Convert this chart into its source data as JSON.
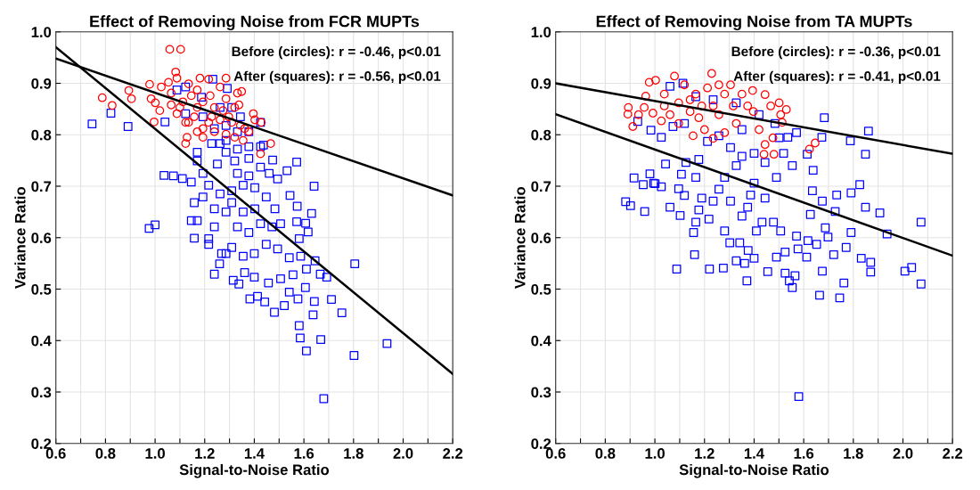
{
  "chart_data": [
    {
      "type": "scatter",
      "title": "Effect of Removing Noise from FCR MUPTs",
      "xlabel": "Signal-to-Noise Ratio",
      "ylabel": "Variance Ratio",
      "annotations": [
        "Before (circles): r = -0.46, p<0.01",
        "After (squares): r = -0.56, p<0.01"
      ],
      "xlim": [
        0.6,
        2.2
      ],
      "ylim": [
        0.2,
        1.0
      ],
      "xticks": [
        0.6,
        {
          "value": 0.7,
          "label": null
        },
        0.8,
        {
          "value": 0.9,
          "label": null
        },
        {
          "value": 1.0,
          "label": "1.0"
        },
        {
          "value": 1.1,
          "label": null
        },
        1.2,
        {
          "value": 1.3,
          "label": null
        },
        1.4,
        {
          "value": 1.5,
          "label": null
        },
        1.6,
        {
          "value": 1.7,
          "label": null
        },
        1.8,
        {
          "value": 1.9,
          "label": null
        },
        {
          "value": 2.0,
          "label": "2.0"
        },
        {
          "value": 2.1,
          "label": null
        },
        2.2
      ],
      "yticks": [
        0.2,
        0.3,
        0.4,
        0.5,
        0.6,
        0.7,
        0.8,
        0.9,
        {
          "value": 1.0,
          "label": "1.0"
        }
      ],
      "grid": true,
      "series": [
        {
          "marker": "square",
          "color": "#0000ff",
          "x": [
            0.746,
            0.822,
            0.891,
            1.04,
            1.036,
            1.074,
            1.11,
            0.976,
            1.0,
            1.158,
            1.146,
            1.17,
            1.216,
            1.239,
            1.26,
            1.268,
            1.315,
            1.338,
            1.361,
            1.382,
            1.413,
            1.442,
            1.481,
            1.521,
            1.541,
            1.576,
            1.581,
            1.585,
            1.61,
            1.668,
            1.68,
            1.637,
            1.642,
            1.711,
            1.753,
            1.802,
            1.805,
            1.935,
            1.692,
            1.666,
            1.61,
            1.645,
            1.606,
            1.556,
            1.506,
            1.457,
            1.4,
            1.641,
            1.631,
            1.617,
            1.571,
            1.532,
            1.474,
            1.544,
            1.573,
            1.571,
            1.607,
            1.581,
            1.587,
            1.541,
            1.494,
            1.448,
            1.4,
            1.355,
            1.309,
            1.286,
            1.216,
            1.239,
            1.17,
            1.146,
            1.158,
            1.193,
            1.239,
            1.286,
            1.332,
            1.378,
            1.425,
            1.471,
            1.506,
            1.483,
            1.448,
            1.402,
            1.355,
            1.309,
            1.262,
            1.216,
            1.193,
            1.251,
            1.286,
            1.321,
            1.378,
            1.425,
            1.46,
            1.494,
            1.378,
            1.332,
            1.355,
            1.402,
            1.309,
            1.262,
            1.228,
            1.286,
            1.332,
            1.378,
            1.425,
            1.437,
            1.17,
            1.332,
            1.378,
            1.425,
            1.286,
            1.239,
            1.193,
            1.123,
            1.123,
            1.088,
            1.233,
            1.291,
            1.309,
            1.344,
            1.262,
            1.187
          ],
          "values": [
            0.821,
            0.842,
            0.816,
            0.825,
            0.721,
            0.72,
            0.715,
            0.618,
            0.625,
            0.599,
            0.708,
            0.749,
            0.598,
            0.529,
            0.549,
            0.569,
            0.517,
            0.51,
            0.532,
            0.481,
            0.486,
            0.475,
            0.455,
            0.468,
            0.494,
            0.481,
            0.429,
            0.405,
            0.38,
            0.402,
            0.287,
            0.45,
            0.476,
            0.48,
            0.454,
            0.371,
            0.549,
            0.394,
            0.523,
            0.529,
            0.539,
            0.555,
            0.503,
            0.528,
            0.52,
            0.512,
            0.523,
            0.7,
            0.647,
            0.611,
            0.747,
            0.73,
            0.751,
            0.682,
            0.661,
            0.631,
            0.628,
            0.598,
            0.564,
            0.561,
            0.578,
            0.587,
            0.569,
            0.564,
            0.581,
            0.569,
            0.587,
            0.621,
            0.633,
            0.633,
            0.668,
            0.679,
            0.656,
            0.65,
            0.621,
            0.61,
            0.627,
            0.621,
            0.627,
            0.656,
            0.679,
            0.697,
            0.702,
            0.691,
            0.685,
            0.702,
            0.725,
            0.743,
            0.766,
            0.749,
            0.754,
            0.737,
            0.725,
            0.714,
            0.72,
            0.725,
            0.65,
            0.656,
            0.668,
            0.783,
            0.783,
            0.789,
            0.772,
            0.777,
            0.777,
            0.78,
            0.766,
            0.806,
            0.806,
            0.824,
            0.818,
            0.812,
            0.835,
            0.841,
            0.893,
            0.887,
            0.908,
            0.89,
            0.853,
            0.835,
            0.853,
            0.873
          ]
        },
        {
          "marker": "circle",
          "color": "#ff0000",
          "x": [
            1.059,
            1.103,
            0.787,
            0.827,
            0.894,
            0.905,
            0.978,
            0.984,
            1.001,
            0.996,
            1.019,
            1.025,
            1.054,
            1.083,
            1.088,
            1.065,
            1.088,
            1.123,
            1.129,
            1.135,
            1.17,
            1.181,
            1.216,
            1.222,
            1.193,
            1.193,
            1.239,
            1.262,
            1.286,
            1.297,
            1.332,
            1.349,
            1.321,
            1.338,
            1.355,
            1.361,
            1.378,
            1.396,
            1.402,
            1.428,
            1.425,
            1.466,
            1.321,
            1.239,
            1.146,
            1.112,
            1.135,
            1.158,
            1.228,
            1.262,
            1.274,
            1.193,
            1.17,
            1.1,
            1.065,
            1.286,
            1.216,
            1.17,
            1.123,
            1.286,
            1.344,
            1.309
          ],
          "values": [
            0.966,
            0.966,
            0.872,
            0.857,
            0.886,
            0.87,
            0.898,
            0.87,
            0.862,
            0.825,
            0.847,
            0.893,
            0.902,
            0.922,
            0.91,
            0.858,
            0.841,
            0.783,
            0.795,
            0.824,
            0.853,
            0.91,
            0.908,
            0.876,
            0.812,
            0.795,
            0.806,
            0.893,
            0.87,
            0.835,
            0.881,
            0.884,
            0.853,
            0.858,
            0.789,
            0.812,
            0.806,
            0.841,
            0.829,
            0.824,
            0.763,
            0.783,
            0.795,
            0.853,
            0.876,
            0.864,
            0.899,
            0.835,
            0.835,
            0.829,
            0.847,
            0.864,
            0.887,
            0.853,
            0.881,
            0.801,
            0.824,
            0.806,
            0.824,
            0.91,
            0.818,
            0.824
          ]
        },
        {
          "type": "line",
          "color": "#000000",
          "x": [
            0.6,
            2.2
          ],
          "values": [
            0.948,
            0.682
          ]
        },
        {
          "type": "line",
          "color": "#000000",
          "x": [
            0.6,
            2.2
          ],
          "values": [
            0.97,
            0.335
          ]
        }
      ]
    },
    {
      "type": "scatter",
      "title": "Effect of Removing Noise from TA MUPTs",
      "xlabel": "Signal-to-Noise Ratio",
      "ylabel": "Variance Ratio",
      "annotations": [
        "Before (circles): r = -0.36, p<0.01",
        "After (squares): r = -0.41, p<0.01"
      ],
      "xlim": [
        0.6,
        2.2
      ],
      "ylim": [
        0.2,
        1.0
      ],
      "xticks": [
        0.6,
        {
          "value": 0.7,
          "label": null
        },
        0.8,
        {
          "value": 0.9,
          "label": null
        },
        {
          "value": 1.0,
          "label": "1.0"
        },
        {
          "value": 1.1,
          "label": null
        },
        1.2,
        {
          "value": 1.3,
          "label": null
        },
        1.4,
        {
          "value": 1.5,
          "label": null
        },
        1.6,
        {
          "value": 1.7,
          "label": null
        },
        1.8,
        {
          "value": 1.9,
          "label": null
        },
        {
          "value": 2.0,
          "label": "2.0"
        },
        {
          "value": 2.1,
          "label": null
        },
        2.2
      ],
      "yticks": [
        0.2,
        0.3,
        0.4,
        0.5,
        0.6,
        0.7,
        0.8,
        0.9,
        {
          "value": 1.0,
          "label": "1.0"
        }
      ],
      "grid": true,
      "series": [
        {
          "marker": "square",
          "color": "#0000ff",
          "x": [
            0.882,
            0.902,
            0.916,
            0.953,
            0.959,
            0.98,
            0.995,
            1.001,
            1.026,
            0.931,
            0.984,
            1.026,
            1.043,
            1.061,
            1.088,
            1.102,
            1.119,
            1.096,
            1.107,
            1.125,
            1.16,
            1.156,
            1.165,
            1.177,
            1.189,
            1.165,
            1.177,
            1.22,
            1.218,
            1.235,
            1.258,
            1.281,
            1.276,
            1.281,
            1.302,
            1.328,
            1.342,
            1.351,
            1.374,
            1.362,
            1.371,
            1.376,
            1.4,
            1.409,
            1.432,
            1.444,
            1.455,
            1.49,
            1.507,
            1.525,
            1.525,
            1.542,
            1.554,
            1.565,
            1.571,
            1.577,
            1.58,
            1.612,
            1.617,
            1.627,
            1.652,
            1.664,
            1.675,
            1.687,
            1.698,
            1.721,
            1.745,
            1.762,
            1.771,
            1.791,
            1.832,
            1.87,
            1.87,
            1.907,
            1.936,
            2.008,
            2.035,
            2.073,
            2.073,
            1.683,
            1.861,
            1.788,
            1.849,
            1.673,
            1.614,
            1.638,
            1.826,
            1.791,
            1.849,
            1.733,
            1.727,
            1.675,
            1.635,
            1.571,
            1.536,
            1.501,
            1.519,
            1.554,
            1.49,
            1.444,
            1.4,
            1.351,
            1.328,
            1.305,
            1.258,
            1.212,
            1.119,
            1.073,
            1.061,
            1.113,
            1.165,
            1.235,
            1.328,
            1.42,
            1.484,
            1.351,
            1.386,
            1.305,
            1.478,
            1.4
          ],
          "values": [
            0.67,
            0.662,
            0.716,
            0.703,
            0.651,
            0.724,
            0.706,
            0.705,
            0.699,
            0.826,
            0.809,
            0.795,
            0.743,
            0.659,
            0.539,
            0.643,
            0.682,
            0.695,
            0.723,
            0.746,
            0.567,
            0.61,
            0.63,
            0.654,
            0.677,
            0.717,
            0.752,
            0.539,
            0.636,
            0.671,
            0.694,
            0.717,
            0.541,
            0.613,
            0.59,
            0.555,
            0.59,
            0.642,
            0.659,
            0.55,
            0.516,
            0.575,
            0.56,
            0.613,
            0.63,
            0.677,
            0.534,
            0.562,
            0.613,
            0.572,
            0.531,
            0.516,
            0.503,
            0.526,
            0.603,
            0.578,
            0.291,
            0.562,
            0.594,
            0.645,
            0.587,
            0.488,
            0.535,
            0.619,
            0.601,
            0.567,
            0.483,
            0.512,
            0.581,
            0.61,
            0.56,
            0.533,
            0.552,
            0.648,
            0.607,
            0.535,
            0.542,
            0.63,
            0.51,
            0.833,
            0.807,
            0.788,
            0.762,
            0.795,
            0.762,
            0.731,
            0.703,
            0.687,
            0.659,
            0.683,
            0.651,
            0.671,
            0.691,
            0.804,
            0.795,
            0.794,
            0.764,
            0.74,
            0.717,
            0.746,
            0.764,
            0.758,
            0.74,
            0.775,
            0.798,
            0.787,
            0.822,
            0.816,
            0.894,
            0.9,
            0.874,
            0.868,
            0.862,
            0.839,
            0.822,
            0.81,
            0.683,
            0.671,
            0.63,
            0.706
          ]
        },
        {
          "marker": "circle",
          "color": "#ff0000",
          "x": [
            0.977,
            1.003,
            1.079,
            1.229,
            0.893,
            0.891,
            0.911,
            0.934,
            0.963,
            0.957,
            0.992,
            1.026,
            1.038,
            1.096,
            1.119,
            1.165,
            1.142,
            1.154,
            1.177,
            1.212,
            1.235,
            1.258,
            1.281,
            1.305,
            1.316,
            1.281,
            1.235,
            1.2,
            1.328,
            1.351,
            1.394,
            1.374,
            1.397,
            1.42,
            1.444,
            1.467,
            1.476,
            1.444,
            1.44,
            1.48,
            1.501,
            1.507,
            1.53,
            1.513,
            1.623,
            1.646,
            1.096,
            1.061,
            1.189,
            1.258,
            1.142,
            1.038
          ],
          "values": [
            0.902,
            0.906,
            0.914,
            0.919,
            0.853,
            0.84,
            0.816,
            0.839,
            0.875,
            0.853,
            0.842,
            0.827,
            0.879,
            0.862,
            0.897,
            0.879,
            0.845,
            0.798,
            0.833,
            0.891,
            0.856,
            0.897,
            0.879,
            0.897,
            0.856,
            0.804,
            0.793,
            0.81,
            0.822,
            0.879,
            0.886,
            0.856,
            0.845,
            0.81,
            0.878,
            0.856,
            0.794,
            0.781,
            0.762,
            0.762,
            0.862,
            0.839,
            0.849,
            0.824,
            0.772,
            0.784,
            0.822,
            0.839,
            0.856,
            0.839,
            0.868,
            0.856
          ]
        },
        {
          "type": "line",
          "color": "#000000",
          "x": [
            0.6,
            2.2
          ],
          "values": [
            0.9,
            0.763
          ]
        },
        {
          "type": "line",
          "color": "#000000",
          "x": [
            0.6,
            2.2
          ],
          "values": [
            0.84,
            0.565
          ]
        }
      ]
    }
  ]
}
